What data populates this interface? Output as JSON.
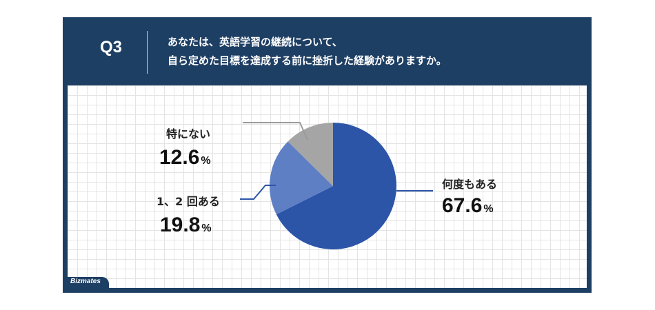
{
  "question": {
    "label": "Q3",
    "line1": "あなたは、英語学習の継続について、",
    "line2": "自ら定めた目標を達成する前に挫折した経験がありますか。"
  },
  "brand": {
    "logo_text": "Bizmates"
  },
  "colors": {
    "frame": "#1e3f64",
    "slice_often": "#2c55a8",
    "slice_once": "#5e7fc4",
    "slice_none": "#a5a5a5",
    "leader": "#2c55a8",
    "leader_gray": "#9a9a9a"
  },
  "chart_data": {
    "type": "pie",
    "title": "",
    "percent_symbol": "%",
    "slices": [
      {
        "label": "何度もある",
        "value": 67.6,
        "display": "67.6",
        "color": "#2c55a8"
      },
      {
        "label": "1、2 回ある",
        "value": 19.8,
        "display": "19.8",
        "color": "#5e7fc4"
      },
      {
        "label": "特にない",
        "value": 12.6,
        "display": "12.6",
        "color": "#a5a5a5"
      }
    ]
  }
}
